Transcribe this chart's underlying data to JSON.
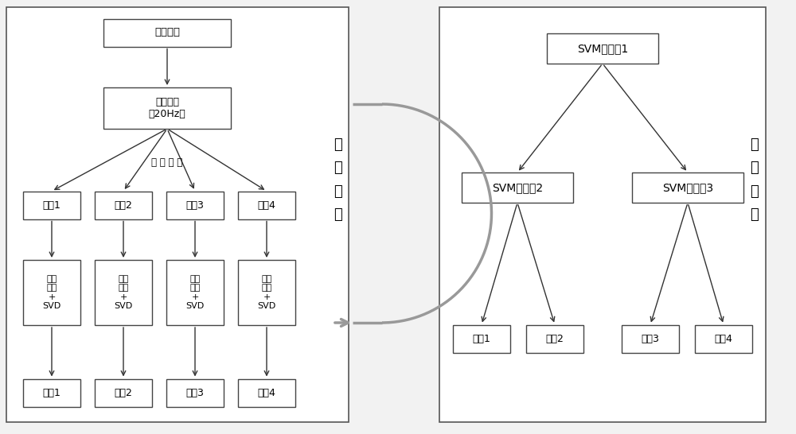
{
  "bg_color": "#f2f2f2",
  "box_color": "#ffffff",
  "box_edge_color": "#444444",
  "line_color": "#333333",
  "text_color": "#000000",
  "left_panel": {
    "title": "原始信号",
    "filter_box": "高频滤波\n（20Hz）",
    "segment_label": "动 作 分 段",
    "action_boxes": [
      "动作1",
      "动作2",
      "动作3",
      "动作4"
    ],
    "wavelet_boxes": [
      "小波\n变换\n+\nSVD",
      "小波\n变换\n+\nSVD",
      "小波\n变换\n+\nSVD",
      "小波\n变换\n+\nSVD"
    ],
    "feature_boxes": [
      "特征1",
      "特征2",
      "特征3",
      "特征4"
    ],
    "side_label": "特\n征\n提\n取"
  },
  "right_panel": {
    "svm1_box": "SVM分类器1",
    "svm2_box": "SVM分类器2",
    "svm3_box": "SVM分类器3",
    "action_boxes": [
      "动作1",
      "动作2",
      "动作3",
      "动作4"
    ],
    "side_label": "特\n征\n分\n类"
  }
}
